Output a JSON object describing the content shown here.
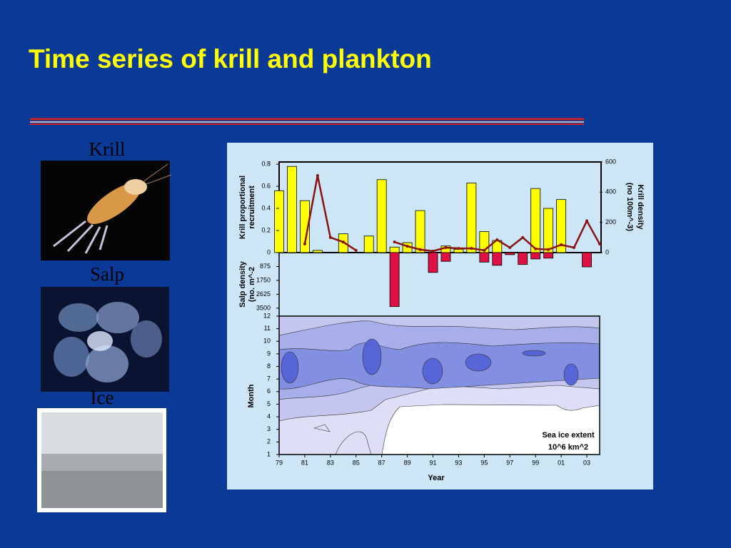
{
  "title": "Time series of krill and plankton",
  "photo_labels": [
    "Krill",
    "Salp",
    "Ice"
  ],
  "chart_data": [
    {
      "type": "bar",
      "x": [
        1979,
        1980,
        1981,
        1982,
        1983,
        1984,
        1985,
        1986,
        1987,
        1988,
        1989,
        1990,
        1991,
        1992,
        1993,
        1994,
        1995,
        1996,
        1997,
        1998,
        1999,
        2000,
        2001,
        2002,
        2003,
        2004
      ],
      "values": [
        0.56,
        0.78,
        0.47,
        0.02,
        null,
        0.17,
        null,
        0.15,
        0.66,
        0.05,
        0.09,
        0.38,
        null,
        0.06,
        0.03,
        0.63,
        0.19,
        0.11,
        null,
        null,
        0.58,
        0.4,
        0.48,
        null,
        null,
        null
      ],
      "color": "#ffff00",
      "xlim": [
        1979,
        2004
      ],
      "ylim": [
        0,
        0.82
      ],
      "yticks": [
        0,
        0.2,
        0.4,
        0.6,
        0.8
      ],
      "ylabel": [
        "Krill proportional",
        "recruitment"
      ],
      "series": [
        {
          "type": "line",
          "axis": "y2",
          "color": "#8b1010",
          "values": [
            null,
            null,
            57,
            510,
            100,
            70,
            15,
            null,
            null,
            70,
            42,
            20,
            10,
            33,
            28,
            28,
            15,
            85,
            33,
            100,
            25,
            20,
            52,
            33,
            210,
            57
          ]
        }
      ],
      "y2lim": [
        0,
        600
      ],
      "y2ticks": [
        0,
        200,
        400,
        600
      ],
      "y2label": [
        "Krill density",
        "(no 100m^-3)"
      ]
    },
    {
      "type": "bar",
      "x": [
        1979,
        1980,
        1981,
        1982,
        1983,
        1984,
        1985,
        1986,
        1987,
        1988,
        1989,
        1990,
        1991,
        1992,
        1993,
        1994,
        1995,
        1996,
        1997,
        1998,
        1999,
        2000,
        2001,
        2002,
        2003,
        2004
      ],
      "values": [
        null,
        null,
        null,
        null,
        null,
        null,
        null,
        null,
        null,
        3400,
        null,
        null,
        1250,
        550,
        null,
        null,
        600,
        800,
        130,
        750,
        400,
        350,
        null,
        null,
        900,
        null
      ],
      "color": "#dd1144",
      "xlim": [
        1979,
        2004
      ],
      "ylim": [
        0,
        4000
      ],
      "inverted": true,
      "yticks": [
        875,
        1750,
        2625,
        3500
      ],
      "ylabel": [
        "Salp density",
        "(no. m^-2"
      ]
    },
    {
      "type": "contour",
      "xlim": [
        1979,
        2004
      ],
      "xticks": [
        {
          "value": 1979,
          "label": "79"
        },
        {
          "value": 1981,
          "label": "81"
        },
        {
          "value": 1983,
          "label": "83"
        },
        {
          "value": 1985,
          "label": "85"
        },
        {
          "value": 1987,
          "label": "87"
        },
        {
          "value": 1989,
          "label": "89"
        },
        {
          "value": 1991,
          "label": "91"
        },
        {
          "value": 1993,
          "label": "93"
        },
        {
          "value": 1995,
          "label": "95"
        },
        {
          "value": 1997,
          "label": "97"
        },
        {
          "value": 1999,
          "label": "99"
        },
        {
          "value": 2001,
          "label": "01"
        },
        {
          "value": 2003,
          "label": "03"
        }
      ],
      "xlabel": "Year",
      "ylim": [
        1,
        12
      ],
      "yticks": [
        1,
        2,
        3,
        4,
        5,
        6,
        7,
        8,
        9,
        10,
        11,
        12
      ],
      "ylabel": "Month",
      "annotation": [
        "Sea ice extent",
        "10^6 km^2"
      ]
    }
  ]
}
